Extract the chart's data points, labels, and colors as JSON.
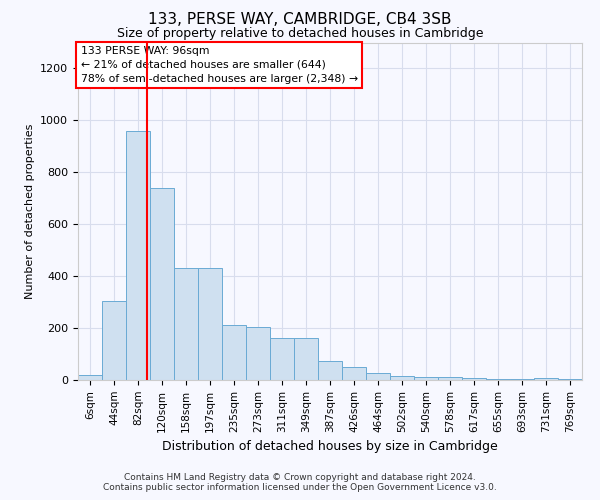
{
  "title": "133, PERSE WAY, CAMBRIDGE, CB4 3SB",
  "subtitle": "Size of property relative to detached houses in Cambridge",
  "xlabel": "Distribution of detached houses by size in Cambridge",
  "ylabel": "Number of detached properties",
  "bar_color": "#cfe0f0",
  "bar_edge_color": "#6aaad4",
  "bar_categories": [
    "6sqm",
    "44sqm",
    "82sqm",
    "120sqm",
    "158sqm",
    "197sqm",
    "235sqm",
    "273sqm",
    "311sqm",
    "349sqm",
    "387sqm",
    "426sqm",
    "464sqm",
    "502sqm",
    "540sqm",
    "578sqm",
    "617sqm",
    "655sqm",
    "693sqm",
    "731sqm",
    "769sqm"
  ],
  "bar_values": [
    20,
    305,
    960,
    740,
    430,
    430,
    210,
    205,
    160,
    160,
    75,
    50,
    28,
    15,
    12,
    10,
    8,
    5,
    5,
    8,
    5
  ],
  "ylim": [
    0,
    1300
  ],
  "yticks": [
    0,
    200,
    400,
    600,
    800,
    1000,
    1200
  ],
  "property_label": "133 PERSE WAY: 96sqm",
  "annotation_line1": "← 21% of detached houses are smaller (644)",
  "annotation_line2": "78% of semi-detached houses are larger (2,348) →",
  "footer1": "Contains HM Land Registry data © Crown copyright and database right 2024.",
  "footer2": "Contains public sector information licensed under the Open Government Licence v3.0.",
  "background_color": "#f7f8ff",
  "grid_color": "#d8dded",
  "title_fontsize": 11,
  "subtitle_fontsize": 9,
  "ylabel_fontsize": 8,
  "xlabel_fontsize": 9,
  "tick_fontsize": 8,
  "footer_fontsize": 6.5
}
